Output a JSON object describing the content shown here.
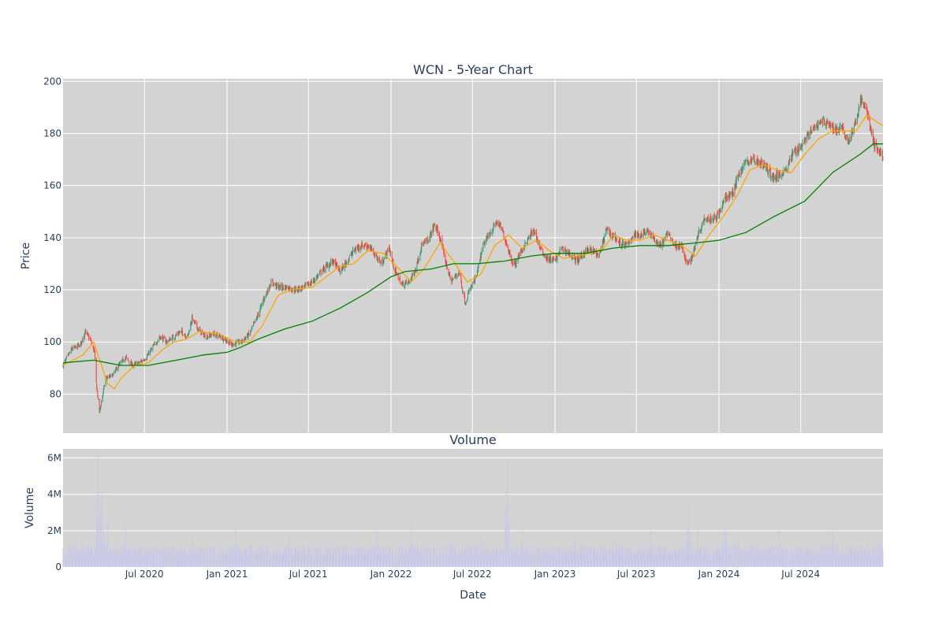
{
  "chart_data": {
    "type": "candlestick",
    "title": "WCN - 5-Year Chart",
    "price_panel": {
      "ylabel": "Price",
      "ylim": [
        65,
        201
      ],
      "yticks": [
        80,
        100,
        120,
        140,
        160,
        180,
        200
      ],
      "background": "#d3d3d3",
      "grid": true,
      "colors": {
        "up": "#3d9970",
        "down": "#ff4136",
        "ma_short": "#ffa500",
        "ma_long": "#008000"
      },
      "series": [
        {
          "name": "close",
          "points": [
            [
              "2020-01-02",
              91
            ],
            [
              "2020-01-20",
              97
            ],
            [
              "2020-02-10",
              99
            ],
            [
              "2020-02-20",
              104
            ],
            [
              "2020-03-02",
              101
            ],
            [
              "2020-03-12",
              96
            ],
            [
              "2020-03-16",
              84
            ],
            [
              "2020-03-23",
              73
            ],
            [
              "2020-03-27",
              77
            ],
            [
              "2020-04-06",
              86
            ],
            [
              "2020-04-20",
              87
            ],
            [
              "2020-05-05",
              91
            ],
            [
              "2020-05-20",
              94
            ],
            [
              "2020-06-05",
              91
            ],
            [
              "2020-06-20",
              92
            ],
            [
              "2020-07-05",
              94
            ],
            [
              "2020-07-20",
              98
            ],
            [
              "2020-08-05",
              102
            ],
            [
              "2020-08-20",
              100
            ],
            [
              "2020-09-05",
              102
            ],
            [
              "2020-09-20",
              104
            ],
            [
              "2020-10-05",
              102
            ],
            [
              "2020-10-15",
              109
            ],
            [
              "2020-11-01",
              104
            ],
            [
              "2020-11-15",
              102
            ],
            [
              "2020-12-01",
              103
            ],
            [
              "2020-12-20",
              102
            ],
            [
              "2021-01-10",
              99
            ],
            [
              "2021-02-01",
              100
            ],
            [
              "2021-02-20",
              103
            ],
            [
              "2021-03-10",
              110
            ],
            [
              "2021-03-25",
              117
            ],
            [
              "2021-04-10",
              123
            ],
            [
              "2021-04-25",
              121
            ],
            [
              "2021-05-15",
              121
            ],
            [
              "2021-06-01",
              120
            ],
            [
              "2021-06-20",
              121
            ],
            [
              "2021-07-10",
              123
            ],
            [
              "2021-07-25",
              126
            ],
            [
              "2021-08-10",
              129
            ],
            [
              "2021-08-25",
              131
            ],
            [
              "2021-09-10",
              127
            ],
            [
              "2021-09-25",
              131
            ],
            [
              "2021-10-10",
              135
            ],
            [
              "2021-10-25",
              137
            ],
            [
              "2021-11-10",
              137
            ],
            [
              "2021-11-25",
              134
            ],
            [
              "2021-12-10",
              130
            ],
            [
              "2021-12-28",
              136
            ],
            [
              "2022-01-10",
              127
            ],
            [
              "2022-01-25",
              122
            ],
            [
              "2022-02-10",
              123
            ],
            [
              "2022-02-25",
              128
            ],
            [
              "2022-03-10",
              137
            ],
            [
              "2022-03-25",
              139
            ],
            [
              "2022-04-08",
              145
            ],
            [
              "2022-04-20",
              140
            ],
            [
              "2022-05-05",
              129
            ],
            [
              "2022-05-15",
              123
            ],
            [
              "2022-06-01",
              127
            ],
            [
              "2022-06-15",
              115
            ],
            [
              "2022-06-25",
              120
            ],
            [
              "2022-07-10",
              125
            ],
            [
              "2022-07-25",
              137
            ],
            [
              "2022-08-10",
              142
            ],
            [
              "2022-08-25",
              146
            ],
            [
              "2022-09-05",
              143
            ],
            [
              "2022-09-20",
              135
            ],
            [
              "2022-10-01",
              129
            ],
            [
              "2022-10-15",
              134
            ],
            [
              "2022-11-01",
              139
            ],
            [
              "2022-11-15",
              143
            ],
            [
              "2022-12-01",
              135
            ],
            [
              "2022-12-15",
              132
            ],
            [
              "2023-01-01",
              131
            ],
            [
              "2023-01-15",
              136
            ],
            [
              "2023-02-01",
              134
            ],
            [
              "2023-02-20",
              131
            ],
            [
              "2023-03-10",
              135
            ],
            [
              "2023-03-25",
              135
            ],
            [
              "2023-04-10",
              133
            ],
            [
              "2023-04-25",
              143
            ],
            [
              "2023-05-10",
              141
            ],
            [
              "2023-05-25",
              138
            ],
            [
              "2023-06-10",
              137
            ],
            [
              "2023-06-25",
              141
            ],
            [
              "2023-07-10",
              141
            ],
            [
              "2023-07-25",
              143
            ],
            [
              "2023-08-10",
              139
            ],
            [
              "2023-08-25",
              137
            ],
            [
              "2023-09-10",
              142
            ],
            [
              "2023-09-25",
              137
            ],
            [
              "2023-10-10",
              137
            ],
            [
              "2023-10-20",
              130
            ],
            [
              "2023-11-01",
              132
            ],
            [
              "2023-11-15",
              141
            ],
            [
              "2023-12-01",
              148
            ],
            [
              "2023-12-15",
              147
            ],
            [
              "2024-01-01",
              149
            ],
            [
              "2024-01-15",
              155
            ],
            [
              "2024-02-01",
              157
            ],
            [
              "2024-02-15",
              165
            ],
            [
              "2024-03-01",
              169
            ],
            [
              "2024-03-15",
              170
            ],
            [
              "2024-04-01",
              169
            ],
            [
              "2024-04-15",
              167
            ],
            [
              "2024-05-01",
              163
            ],
            [
              "2024-05-15",
              164
            ],
            [
              "2024-06-01",
              167
            ],
            [
              "2024-06-15",
              173
            ],
            [
              "2024-07-01",
              175
            ],
            [
              "2024-07-15",
              179
            ],
            [
              "2024-08-01",
              182
            ],
            [
              "2024-08-15",
              185
            ],
            [
              "2024-09-01",
              184
            ],
            [
              "2024-09-15",
              181
            ],
            [
              "2024-10-01",
              182
            ],
            [
              "2024-10-15",
              177
            ],
            [
              "2024-11-01",
              184
            ],
            [
              "2024-11-10",
              193
            ],
            [
              "2024-11-25",
              189
            ],
            [
              "2024-12-10",
              176
            ],
            [
              "2024-12-31",
              171
            ]
          ]
        },
        {
          "name": "ma_short",
          "points": [
            [
              "2020-01-02",
              91
            ],
            [
              "2020-02-15",
              95
            ],
            [
              "2020-03-10",
              100
            ],
            [
              "2020-04-10",
              84
            ],
            [
              "2020-04-25",
              82
            ],
            [
              "2020-05-10",
              86
            ],
            [
              "2020-06-10",
              91
            ],
            [
              "2020-07-10",
              92
            ],
            [
              "2020-08-10",
              97
            ],
            [
              "2020-09-05",
              100
            ],
            [
              "2020-10-01",
              101
            ],
            [
              "2020-11-01",
              104
            ],
            [
              "2020-12-15",
              103
            ],
            [
              "2021-01-20",
              100
            ],
            [
              "2021-02-20",
              100
            ],
            [
              "2021-03-20",
              106
            ],
            [
              "2021-04-25",
              118
            ],
            [
              "2021-05-25",
              120
            ],
            [
              "2021-07-10",
              121
            ],
            [
              "2021-08-10",
              125
            ],
            [
              "2021-09-10",
              129
            ],
            [
              "2021-10-10",
              130
            ],
            [
              "2021-11-10",
              135
            ],
            [
              "2021-12-15",
              134
            ],
            [
              "2022-01-25",
              127
            ],
            [
              "2022-02-15",
              123
            ],
            [
              "2022-03-15",
              128
            ],
            [
              "2022-04-20",
              138
            ],
            [
              "2022-05-20",
              131
            ],
            [
              "2022-06-20",
              123
            ],
            [
              "2022-07-20",
              126
            ],
            [
              "2022-08-20",
              137
            ],
            [
              "2022-09-20",
              141
            ],
            [
              "2022-10-20",
              136
            ],
            [
              "2022-11-20",
              139
            ],
            [
              "2022-12-20",
              135
            ],
            [
              "2023-01-20",
              132
            ],
            [
              "2023-02-20",
              133
            ],
            [
              "2023-03-20",
              134
            ],
            [
              "2023-04-20",
              136
            ],
            [
              "2023-05-10",
              141
            ],
            [
              "2023-06-10",
              139
            ],
            [
              "2023-07-10",
              139
            ],
            [
              "2023-08-10",
              141
            ],
            [
              "2023-09-10",
              139
            ],
            [
              "2023-10-10",
              137
            ],
            [
              "2023-11-10",
              133
            ],
            [
              "2023-12-10",
              141
            ],
            [
              "2024-01-10",
              148
            ],
            [
              "2024-02-10",
              156
            ],
            [
              "2024-03-10",
              166
            ],
            [
              "2024-04-10",
              168
            ],
            [
              "2024-05-10",
              166
            ],
            [
              "2024-06-10",
              165
            ],
            [
              "2024-07-10",
              172
            ],
            [
              "2024-08-10",
              178
            ],
            [
              "2024-09-10",
              181
            ],
            [
              "2024-10-10",
              181
            ],
            [
              "2024-11-01",
              181
            ],
            [
              "2024-11-25",
              187
            ],
            [
              "2024-12-31",
              183
            ]
          ]
        },
        {
          "name": "ma_long",
          "points": [
            [
              "2020-01-02",
              92
            ],
            [
              "2020-03-10",
              93
            ],
            [
              "2020-05-10",
              91
            ],
            [
              "2020-07-10",
              91
            ],
            [
              "2020-09-10",
              93
            ],
            [
              "2020-11-10",
              95
            ],
            [
              "2021-01-01",
              96
            ],
            [
              "2021-02-01",
              98
            ],
            [
              "2021-03-10",
              101
            ],
            [
              "2021-05-10",
              105
            ],
            [
              "2021-07-10",
              108
            ],
            [
              "2021-09-10",
              113
            ],
            [
              "2021-11-10",
              119
            ],
            [
              "2022-01-01",
              125
            ],
            [
              "2022-02-01",
              127
            ],
            [
              "2022-04-01",
              128
            ],
            [
              "2022-05-20",
              130
            ],
            [
              "2022-07-10",
              130
            ],
            [
              "2022-09-10",
              131
            ],
            [
              "2022-11-10",
              133
            ],
            [
              "2023-01-01",
              134
            ],
            [
              "2023-03-10",
              134
            ],
            [
              "2023-05-10",
              136
            ],
            [
              "2023-07-10",
              137
            ],
            [
              "2023-09-10",
              137
            ],
            [
              "2023-11-10",
              138
            ],
            [
              "2024-01-01",
              139
            ],
            [
              "2024-03-01",
              142
            ],
            [
              "2024-05-01",
              148
            ],
            [
              "2024-07-10",
              154
            ],
            [
              "2024-09-10",
              165
            ],
            [
              "2024-11-10",
              172
            ],
            [
              "2024-12-10",
              176
            ],
            [
              "2024-12-31",
              176
            ]
          ]
        }
      ]
    },
    "volume_panel": {
      "title": "Volume",
      "ylabel": "Volume",
      "xlabel": "Date",
      "ylim": [
        0,
        6500000
      ],
      "yticks": [
        0,
        2000000,
        4000000,
        6000000
      ],
      "ytick_labels": [
        "0",
        "2M",
        "4M",
        "6M"
      ],
      "bar_color": "#c8c8e8",
      "spikes": [
        [
          "2020-03-20",
          6200000
        ],
        [
          "2020-03-27",
          4000000
        ],
        [
          "2020-04-10",
          2400000
        ],
        [
          "2020-05-20",
          2300000
        ],
        [
          "2020-10-15",
          1600000
        ],
        [
          "2021-01-20",
          2400000
        ],
        [
          "2021-02-20",
          2200000
        ],
        [
          "2021-05-20",
          1700000
        ],
        [
          "2021-12-01",
          2200000
        ],
        [
          "2022-02-15",
          2600000
        ],
        [
          "2022-05-15",
          2400000
        ],
        [
          "2022-07-20",
          1800000
        ],
        [
          "2022-09-16",
          5900000
        ],
        [
          "2022-10-20",
          2400000
        ],
        [
          "2023-02-15",
          1700000
        ],
        [
          "2023-05-20",
          2800000
        ],
        [
          "2023-08-01",
          2000000
        ],
        [
          "2023-10-25",
          3600000
        ],
        [
          "2023-11-15",
          2200000
        ],
        [
          "2024-01-15",
          2800000
        ],
        [
          "2024-02-10",
          2700000
        ],
        [
          "2024-05-15",
          2000000
        ],
        [
          "2024-09-10",
          2300000
        ],
        [
          "2024-11-10",
          2200000
        ],
        [
          "2024-12-28",
          2800000
        ]
      ]
    },
    "x_axis": {
      "type": "date",
      "range": [
        "2020-01-02",
        "2024-12-31"
      ],
      "ticks": [
        [
          "2020-07-01",
          "Jul 2020"
        ],
        [
          "2021-01-01",
          "Jan 2021"
        ],
        [
          "2021-07-01",
          "Jul 2021"
        ],
        [
          "2022-01-01",
          "Jan 2022"
        ],
        [
          "2022-07-01",
          "Jul 2022"
        ],
        [
          "2023-01-01",
          "Jan 2023"
        ],
        [
          "2023-07-01",
          "Jul 2023"
        ],
        [
          "2024-01-01",
          "Jan 2024"
        ],
        [
          "2024-07-01",
          "Jul 2024"
        ]
      ]
    }
  }
}
